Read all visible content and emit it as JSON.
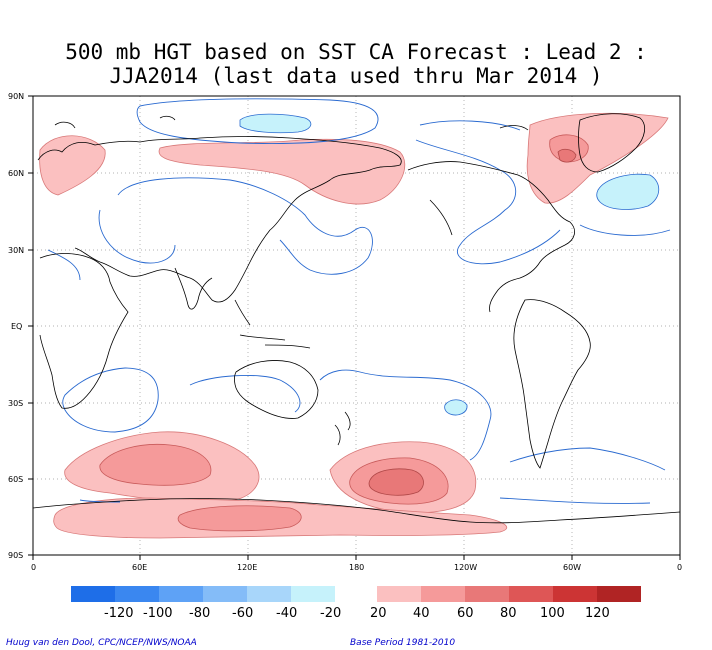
{
  "title": {
    "line1": "500 mb HGT based on SST CA Forecast : Lead 2 :",
    "line2": "JJA2014 (last data used thru Mar 2014 )"
  },
  "axes": {
    "lat_labels": [
      "90N",
      "60N",
      "30N",
      "EQ",
      "30S",
      "60S",
      "90S"
    ],
    "lon_labels": [
      "0",
      "60E",
      "120E",
      "180",
      "120W",
      "60W",
      "0"
    ]
  },
  "colorbar": {
    "negative_labels": [
      "-120",
      "-100",
      "-80",
      "-60",
      "-40",
      "-20"
    ],
    "positive_labels": [
      "20",
      "40",
      "60",
      "80",
      "100",
      "120"
    ],
    "negative_colors": [
      "#1e6ee8",
      "#3a87f0",
      "#5ea2f6",
      "#84bcf8",
      "#a8d6fa",
      "#c6f2fb"
    ],
    "positive_colors": [
      "#fbc0c0",
      "#f59a9a",
      "#e87878",
      "#de5656",
      "#cc3434",
      "#b02424"
    ]
  },
  "footer": {
    "credit": "Huug van den Dool, CPC/NCEP/NWS/NOAA",
    "base_period": "Base Period 1981-2010"
  }
}
